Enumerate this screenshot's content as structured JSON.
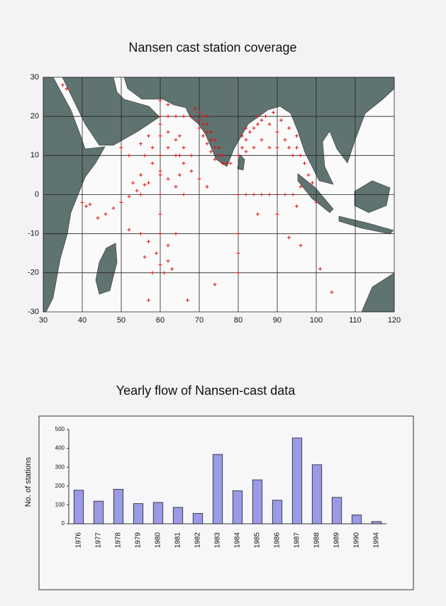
{
  "chart_data": [
    {
      "type": "scatter",
      "title": "Nansen cast station coverage",
      "color": "#e01010",
      "grid": true,
      "xlim": [
        30,
        120
      ],
      "ylim": [
        -30,
        30
      ],
      "xticks": [
        30,
        40,
        50,
        60,
        70,
        80,
        90,
        100,
        110,
        120
      ],
      "yticks": [
        -30,
        -20,
        -10,
        0,
        10,
        20,
        30
      ],
      "x": [
        72,
        72,
        73,
        74,
        75,
        76,
        77,
        71,
        70,
        69,
        71,
        72,
        73,
        74,
        75,
        70,
        70,
        71,
        72,
        73,
        74,
        76,
        78,
        80,
        81,
        82,
        83,
        85,
        87,
        89,
        84,
        86,
        81,
        82,
        85,
        88,
        90,
        92,
        93,
        94,
        95,
        90,
        88,
        86,
        84,
        82,
        91,
        93,
        95,
        96,
        60,
        62,
        64,
        66,
        68,
        60,
        62,
        64,
        66,
        68,
        60,
        58,
        56,
        58,
        60,
        62,
        64,
        66,
        55,
        57,
        62,
        64,
        66,
        68,
        70,
        72,
        60,
        60,
        60,
        60,
        65,
        65,
        65,
        55,
        55,
        52,
        50,
        53,
        57,
        44,
        46,
        48,
        50,
        52,
        54,
        56,
        40,
        41,
        42,
        52,
        55,
        57,
        59,
        60,
        61,
        62,
        58,
        63,
        57,
        67,
        74,
        60,
        62,
        56,
        64,
        80,
        80,
        93,
        96,
        101,
        104,
        80,
        85,
        90,
        95,
        80,
        82,
        84,
        86,
        88,
        90,
        92,
        94,
        98,
        97,
        99,
        96,
        100,
        35,
        36,
        60,
        62
      ],
      "values": [
        20,
        18,
        16,
        14,
        12,
        10,
        8,
        20,
        21,
        22,
        18,
        16,
        14,
        12,
        10,
        19,
        17,
        15,
        13,
        11,
        9,
        8,
        8,
        10,
        12,
        14,
        16,
        18,
        20,
        21,
        17,
        19,
        15,
        17,
        20,
        18,
        16,
        14,
        12,
        10,
        12,
        12,
        12,
        14,
        12,
        11,
        19,
        17,
        15,
        10,
        20,
        20,
        20,
        20,
        20,
        18,
        16,
        14,
        12,
        10,
        15,
        12,
        10,
        8,
        6,
        4,
        2,
        0,
        13,
        15,
        12,
        10,
        8,
        6,
        4,
        2,
        10,
        5,
        0,
        -5,
        5,
        10,
        15,
        5,
        0,
        10,
        12,
        3,
        3,
        -6,
        -5,
        -3.5,
        -2,
        -0.5,
        1,
        2.5,
        -2,
        -3,
        -2.5,
        -9,
        -10,
        -12,
        -15,
        -18,
        -20,
        -17,
        -20,
        -19,
        -27,
        -27,
        -23,
        -10,
        -13,
        -16,
        -10,
        -15,
        -20,
        -11,
        -13,
        -19,
        -25,
        -10,
        -5,
        -5,
        -3,
        0,
        0,
        0,
        0,
        0,
        0,
        0,
        0,
        5,
        8,
        3,
        2,
        -2,
        28,
        27,
        24,
        23
      ]
    },
    {
      "type": "bar",
      "title": "Yearly flow of Nansen-cast data",
      "y_label": "No. of stations",
      "color": "#9a9ae6",
      "ylim": [
        0,
        500
      ],
      "yticks": [
        0,
        100,
        200,
        300,
        400,
        500
      ],
      "categories": [
        "1976",
        "1977",
        "1978",
        "1979",
        "1980",
        "1981",
        "1982",
        "1983",
        "1984",
        "1985",
        "1986",
        "1987",
        "1988",
        "1989",
        "1990",
        "1994"
      ],
      "values": [
        178,
        120,
        183,
        107,
        113,
        87,
        55,
        368,
        175,
        233,
        125,
        455,
        313,
        140,
        47,
        12
      ]
    }
  ]
}
